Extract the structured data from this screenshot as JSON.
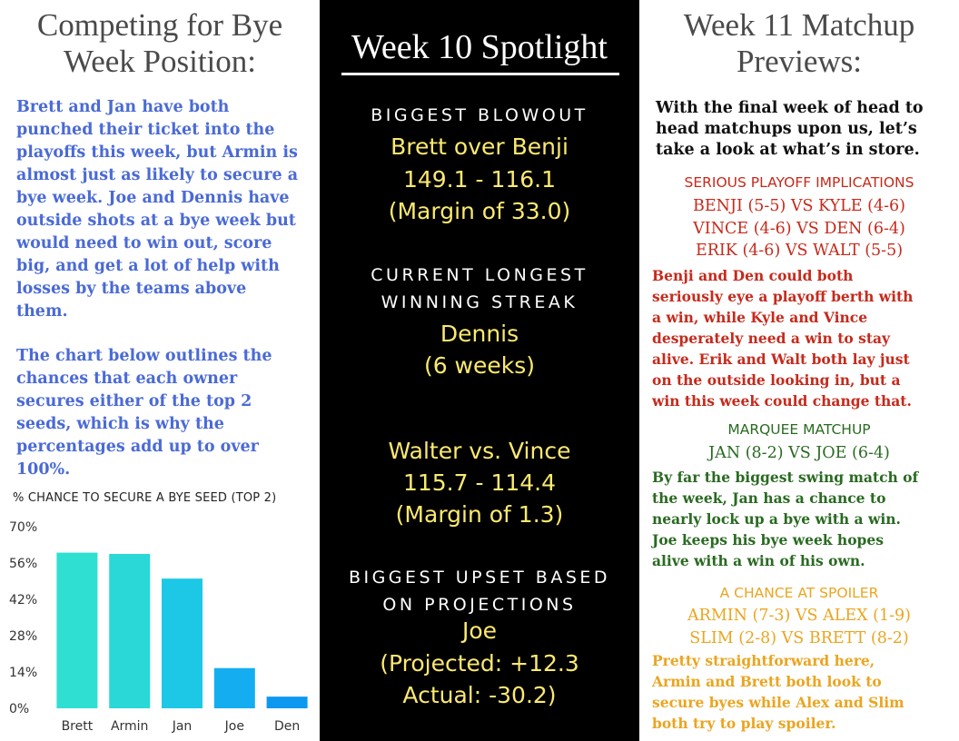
{
  "left": {
    "heading": [
      "Competing for Bye",
      "Week Position:"
    ],
    "para1": [
      "Brett and Jan have both",
      "punched their ticket into the",
      "playoffs this week, but Armin is",
      "almost just as likely to secure a",
      "bye week. Joe and Dennis have",
      "outside shots at a bye week but",
      "would need to win out, score",
      "big, and get a lot of help with",
      "losses by the teams above",
      "them."
    ],
    "para2": [
      "The chart below outlines the",
      "chances that each owner",
      "secures either of the top 2",
      "seeds, which is why the",
      "percentages add up to over",
      "100%."
    ]
  },
  "chart_data": {
    "type": "bar",
    "title": "% CHANCE TO SECURE A BYE SEED (TOP 2)",
    "categories": [
      "Brett",
      "Armin",
      "Jan",
      "Joe",
      "Den"
    ],
    "values": [
      60,
      59.5,
      50,
      15.5,
      4.5
    ],
    "yticks": [
      "70%",
      "56%",
      "42%",
      "28%",
      "14%",
      "0%"
    ],
    "ylim": [
      0,
      70
    ],
    "colors": [
      "#2fe0d2",
      "#2ad8d8",
      "#1cc8e6",
      "#14aef0",
      "#0c98f0"
    ],
    "grid": false,
    "legend": "none"
  },
  "middle": {
    "title": "Week 10 Spotlight",
    "blowout": {
      "head": "BIGGEST BLOWOUT",
      "lines": [
        "Brett over Benji",
        "149.1 - 116.1",
        "(Margin of 33.0)"
      ]
    },
    "streak": {
      "head": [
        "CURRENT LONGEST",
        "WINNING STREAK"
      ],
      "lines": [
        "Dennis",
        "(6 weeks)"
      ]
    },
    "closest": {
      "lines": [
        "Walter vs. Vince",
        "115.7 - 114.4",
        "(Margin of 1.3)"
      ]
    },
    "upset": {
      "head": [
        "BIGGEST UPSET BASED",
        "ON PROJECTIONS"
      ],
      "lines": [
        "Joe",
        "(Projected: +12.3",
        "Actual: -30.2)"
      ]
    }
  },
  "right": {
    "heading": [
      "Week 11 Matchup",
      "Previews:"
    ],
    "intro": [
      "With the final week of head to",
      "head matchups upon us, let’s",
      "take a look at what’s in store."
    ],
    "serious": {
      "head": "SERIOUS PLAYOFF IMPLICATIONS",
      "matches": [
        "BENJI (5-5) VS KYLE (4-6)",
        "VINCE (4-6) VS DEN (6-4)",
        "ERIK (4-6) VS WALT (5-5)"
      ],
      "text": [
        "Benji and Den could both",
        "seriously eye a playoff berth with",
        "a win, while Kyle and Vince",
        "desperately need a win to stay",
        "alive. Erik and Walt both lay just",
        "on the outside looking in, but a",
        "win this week could change that."
      ],
      "color": "#c62a1c"
    },
    "marquee": {
      "head": "MARQUEE MATCHUP",
      "matches": [
        "JAN (8-2) VS JOE (6-4)"
      ],
      "text": [
        "By far the biggest swing match of",
        "the week, Jan has a chance to",
        "nearly lock up a bye with a win.",
        "Joe keeps his bye week hopes",
        "alive with a win of his own."
      ],
      "color": "#2a6a22"
    },
    "spoiler": {
      "head": "A CHANCE AT SPOILER",
      "matches": [
        "ARMIN (7-3) VS ALEX (1-9)",
        "SLIM (2-8) VS BRETT (8-2)"
      ],
      "text": [
        "Pretty straightforward here,",
        "Armin and Brett both look to",
        "secure byes while Alex and Slim",
        "both try to play spoiler."
      ],
      "color": "#eaa520"
    }
  }
}
